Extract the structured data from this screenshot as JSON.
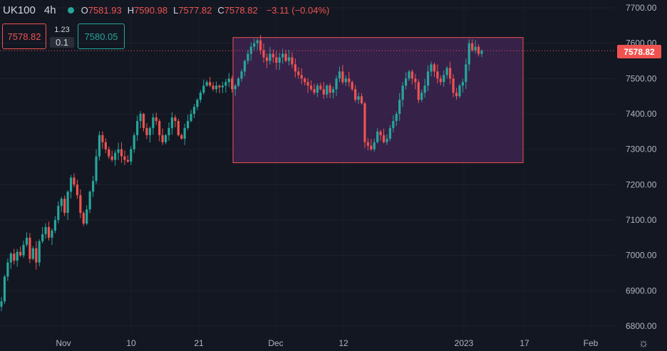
{
  "legend": {
    "symbol": "UK100",
    "timeframe": "4h",
    "o_key": "O",
    "o_val": "7581.93",
    "h_key": "H",
    "h_val": "7590.98",
    "l_key": "L",
    "l_val": "7577.82",
    "c_key": "C",
    "c_val": "7578.82",
    "change": "−3.11 (−0.04%)"
  },
  "trade_panel": {
    "sell_price": "7578.82",
    "spread": "1.23",
    "lot": "0.1",
    "buy_price": "7580.05"
  },
  "last_price_label": "7578.82",
  "colors": {
    "background": "#131722",
    "up": "#26a69a",
    "down": "#ef5350",
    "zone_fill": "#3d2350",
    "zone_border": "#ef5350"
  },
  "icons": {
    "settings": "gear-icon"
  },
  "chart_data": {
    "type": "candlestick",
    "title": "",
    "symbol": "UK100",
    "interval": "4h",
    "ylim": [
      6780,
      7710
    ],
    "y_ticks": [
      "7700.00",
      "7600.00",
      "7500.00",
      "7400.00",
      "7300.00",
      "7200.00",
      "7100.00",
      "7000.00",
      "6900.00",
      "6800.00"
    ],
    "x_ticks": [
      "Nov",
      "10",
      "21",
      "Dec",
      "12",
      "2023",
      "17",
      "Feb"
    ],
    "last_price": 7578.82,
    "zone": {
      "price_top": 7616,
      "price_bottom": 7262,
      "start": "Nov 28",
      "end": "Jan 10"
    },
    "series": [
      {
        "bullish_color": "#26a69a",
        "bearish_color": "#ef5350",
        "closes": [
          6870,
          6940,
          6980,
          7005,
          6985,
          7010,
          7000,
          7030,
          7050,
          6990,
          7020,
          6980,
          7040,
          7060,
          7080,
          7050,
          7070,
          7100,
          7140,
          7160,
          7120,
          7180,
          7220,
          7200,
          7170,
          7120,
          7090,
          7130,
          7180,
          7210,
          7280,
          7340,
          7320,
          7300,
          7280,
          7270,
          7290,
          7300,
          7280,
          7270,
          7265,
          7300,
          7340,
          7380,
          7400,
          7360,
          7340,
          7360,
          7390,
          7380,
          7340,
          7320,
          7340,
          7360,
          7390,
          7380,
          7340,
          7330,
          7360,
          7380,
          7400,
          7420,
          7440,
          7460,
          7480,
          7490,
          7480,
          7470,
          7480,
          7475,
          7480,
          7490,
          7500,
          7470,
          7480,
          7500,
          7520,
          7550,
          7570,
          7590,
          7600,
          7608,
          7580,
          7560,
          7550,
          7570,
          7560,
          7545,
          7560,
          7570,
          7550,
          7560,
          7540,
          7520,
          7510,
          7500,
          7490,
          7480,
          7470,
          7460,
          7480,
          7470,
          7455,
          7480,
          7460,
          7470,
          7500,
          7520,
          7490,
          7500,
          7490,
          7470,
          7440,
          7450,
          7430,
          7320,
          7310,
          7300,
          7320,
          7350,
          7340,
          7320,
          7330,
          7360,
          7380,
          7400,
          7440,
          7480,
          7500,
          7520,
          7500,
          7490,
          7440,
          7460,
          7480,
          7520,
          7540,
          7520,
          7500,
          7490,
          7510,
          7530,
          7500,
          7460,
          7450,
          7480,
          7490,
          7540,
          7600,
          7580,
          7590,
          7570,
          7578.82
        ]
      }
    ]
  }
}
